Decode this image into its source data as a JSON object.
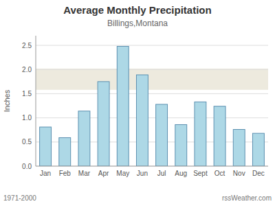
{
  "chart_data": {
    "type": "bar",
    "title": "Average Monthly Precipitation",
    "subtitle": "Billings,Montana",
    "y_label": "Inches",
    "categories": [
      "Jan",
      "Feb",
      "Mar",
      "Apr",
      "May",
      "Jun",
      "Jul",
      "Aug",
      "Sept",
      "Oct",
      "Nov",
      "Dec"
    ],
    "values": [
      0.81,
      0.59,
      1.14,
      1.75,
      2.48,
      1.89,
      1.28,
      0.86,
      1.33,
      1.24,
      0.76,
      0.68
    ],
    "color": "#add8e6",
    "band": [
      1.58,
      2.02
    ],
    "ylim": [
      0,
      2.7
    ],
    "yticks": [
      {
        "value": 0,
        "label": "0.0"
      },
      0.5,
      {
        "value": 1,
        "label": "1.0"
      },
      1.5,
      {
        "value": 2,
        "label": "2.0"
      },
      2.5
    ],
    "grid": true,
    "footer": [
      "1971-2000",
      "rssWeather.com"
    ]
  }
}
